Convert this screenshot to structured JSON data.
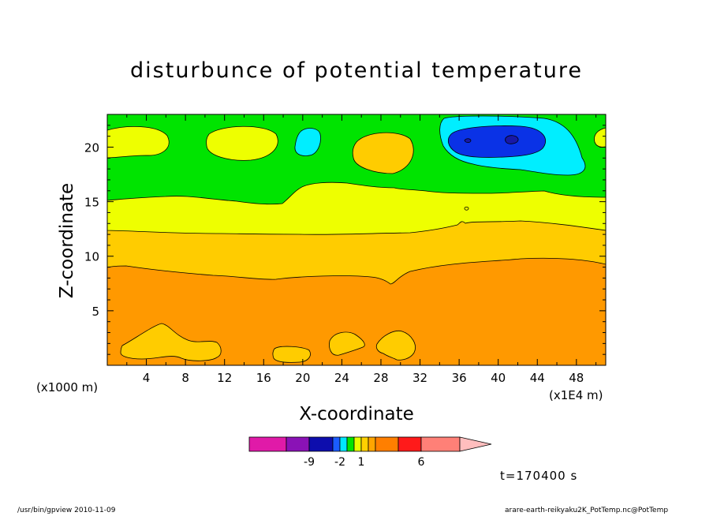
{
  "chart_data": {
    "type": "heatmap",
    "title": "disturbunce of potential temperature",
    "xlabel": "X-coordinate",
    "ylabel": "Z-coordinate",
    "x_unit_left": "(x1000 m)",
    "x_unit_right": "(x1E4 m)",
    "xlim": [
      0,
      51
    ],
    "ylim": [
      0,
      23
    ],
    "x_ticks": [
      "4",
      "8",
      "12",
      "16",
      "20",
      "24",
      "28",
      "32",
      "36",
      "40",
      "44",
      "48"
    ],
    "y_ticks": [
      "5",
      "10",
      "15",
      "20"
    ],
    "time_label": "t=170400 s",
    "colorbar": {
      "labels": [
        "-9",
        "-2",
        "1",
        "6"
      ],
      "colors": [
        "#e01aa8",
        "#8a12b6",
        "#0d0dad",
        "#1a5cff",
        "#00e6ff",
        "#00e400",
        "#e6ff00",
        "#ffd000",
        "#ffa500",
        "#ff7f00",
        "#ff1a1a",
        "#ff8077",
        "#ffbebe"
      ]
    },
    "field_colors": {
      "orange": "#ff9900",
      "light_orange": "#ffcc00",
      "yellow": "#eeff00",
      "green": "#00e400",
      "cyan": "#00eeff",
      "blue": "#0a32e6",
      "dark_blue": "#1818a8"
    }
  },
  "footer": {
    "left": "/usr/bin/gpview  2010-11-09",
    "right": "arare-earth-reikyaku2K_PotTemp.nc@PotTemp"
  }
}
